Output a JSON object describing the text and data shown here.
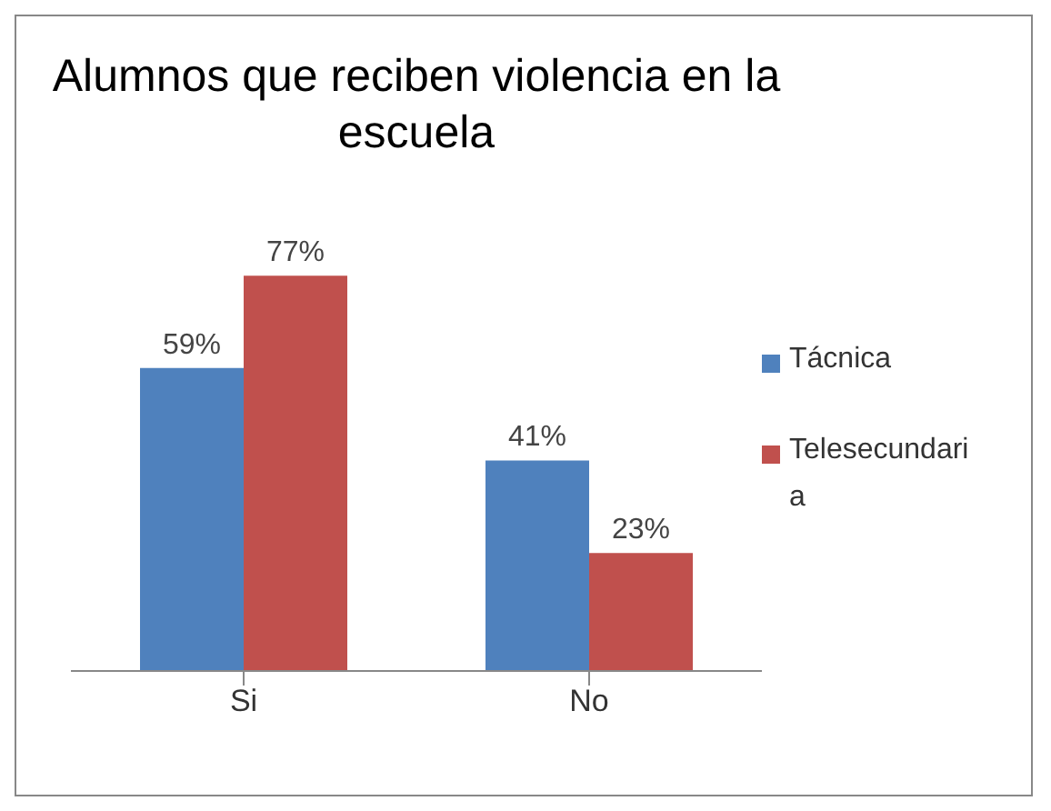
{
  "chart_data": {
    "type": "bar",
    "title": "Alumnos que reciben violencia en la escuela",
    "categories": [
      "Si",
      "No"
    ],
    "series": [
      {
        "name": "Tácnica",
        "color": "#4f81bd",
        "values": [
          59,
          41
        ],
        "value_labels": [
          "59%",
          "41%"
        ]
      },
      {
        "name": "Telesecundaria",
        "color": "#c0504d",
        "values": [
          77,
          23
        ],
        "value_labels": [
          "77%",
          "23%"
        ]
      }
    ],
    "legend": "right",
    "grid": false
  }
}
